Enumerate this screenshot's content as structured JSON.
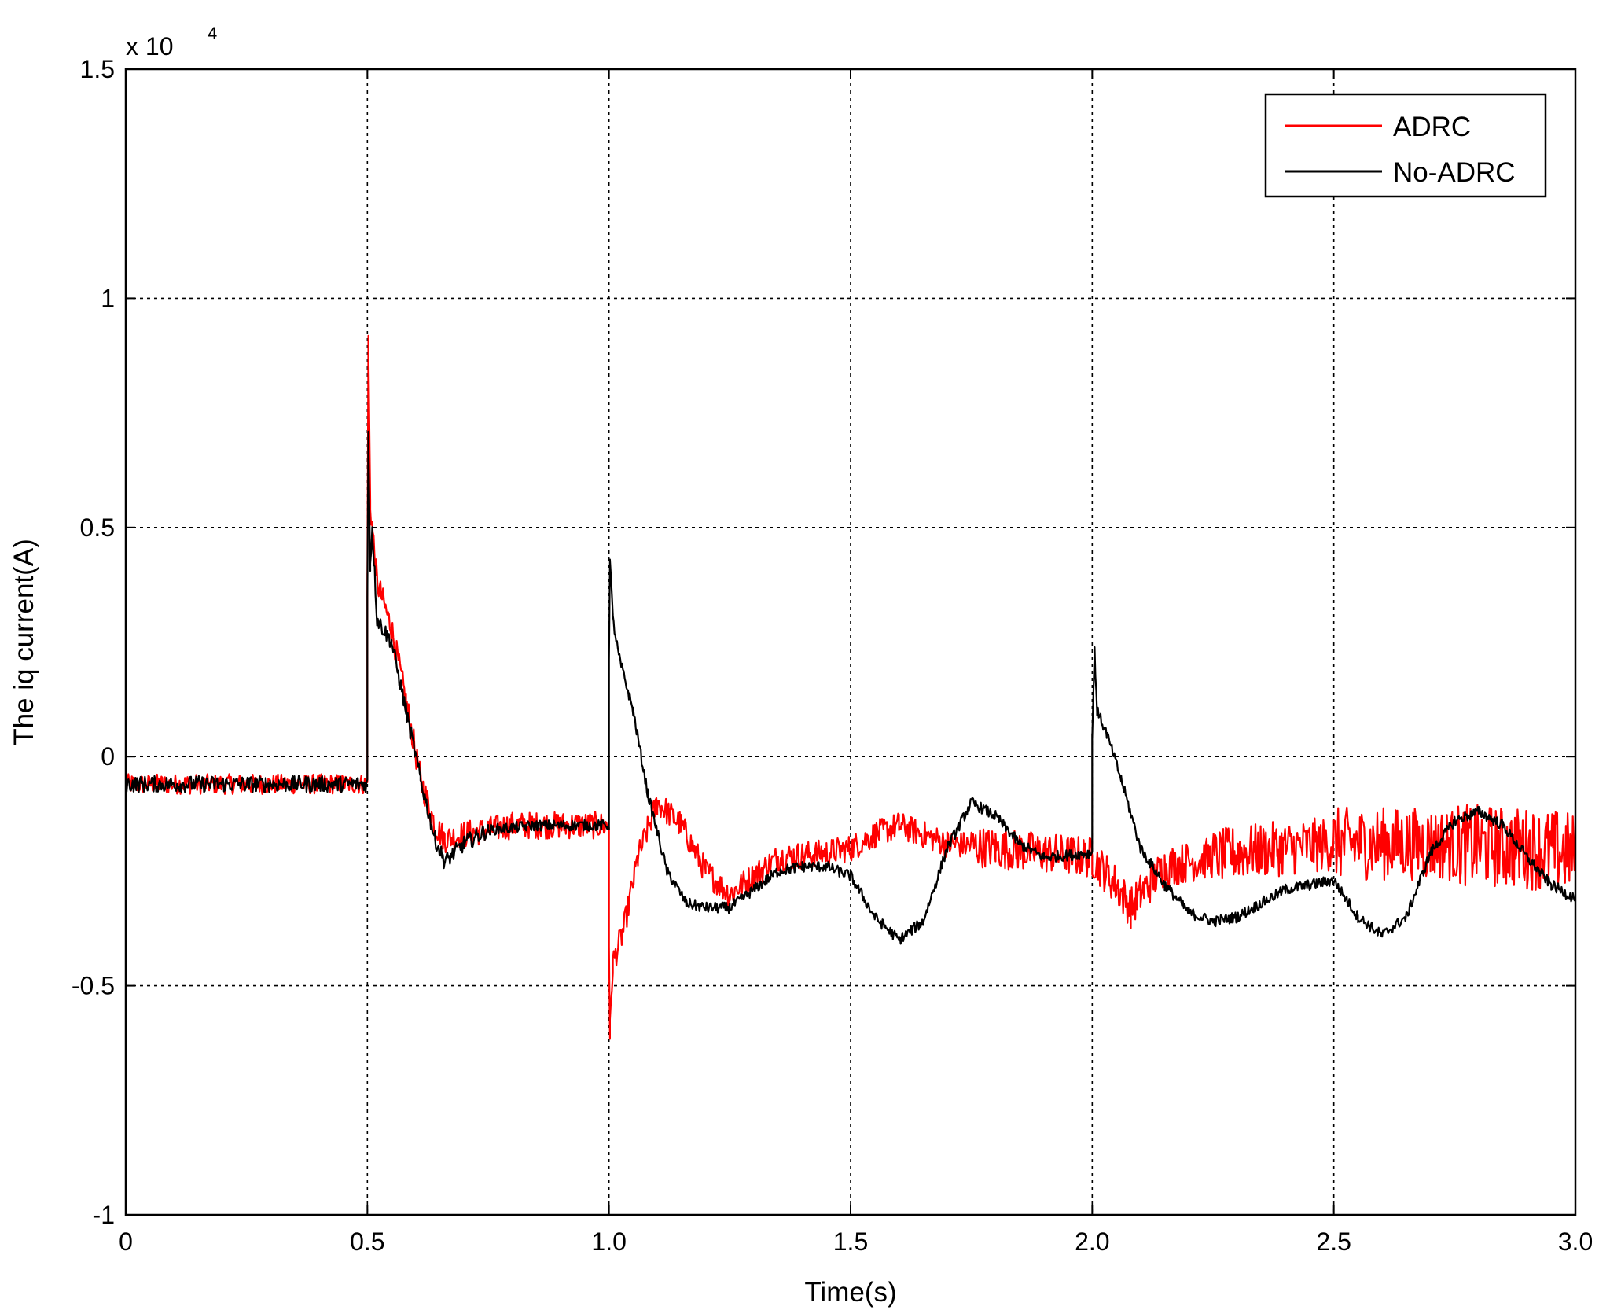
{
  "chart_data": {
    "type": "line",
    "xlabel": "Time(s)",
    "ylabel": "The iq current(A)",
    "y_multiplier": {
      "base": "x 10",
      "exponent": "4"
    },
    "xlim": [
      0,
      3
    ],
    "ylim": [
      -1,
      1.5
    ],
    "x_ticks": [
      "0",
      "0.5",
      "1.0",
      "1.5",
      "2.0",
      "2.5",
      "3.0"
    ],
    "y_ticks": [
      "-1",
      "-0.5",
      "0",
      "0.5",
      "1",
      "1.5"
    ],
    "grid": true,
    "legend_position": "top-right",
    "series": [
      {
        "name": "ADRC",
        "color": "#ff0000",
        "noise": [
          0.022,
          0.022,
          0.03,
          0.03,
          0.03,
          0.03,
          0.03,
          0.045,
          0.045,
          0.06,
          0.08,
          0.09
        ],
        "points": [
          [
            0,
            -0.06
          ],
          [
            0.5,
            -0.06
          ],
          [
            0.5,
            0.4
          ],
          [
            0.502,
            0.9
          ],
          [
            0.506,
            0.55
          ],
          [
            0.52,
            0.38
          ],
          [
            0.55,
            0.28
          ],
          [
            0.58,
            0.12
          ],
          [
            0.61,
            -0.05
          ],
          [
            0.64,
            -0.15
          ],
          [
            0.66,
            -0.18
          ],
          [
            0.7,
            -0.17
          ],
          [
            0.75,
            -0.16
          ],
          [
            0.8,
            -0.15
          ],
          [
            0.9,
            -0.15
          ],
          [
            1.0,
            -0.15
          ],
          [
            1.0,
            -0.4
          ],
          [
            1.002,
            -0.6
          ],
          [
            1.008,
            -0.45
          ],
          [
            1.03,
            -0.38
          ],
          [
            1.06,
            -0.22
          ],
          [
            1.1,
            -0.1
          ],
          [
            1.15,
            -0.15
          ],
          [
            1.2,
            -0.25
          ],
          [
            1.25,
            -0.3
          ],
          [
            1.3,
            -0.26
          ],
          [
            1.35,
            -0.22
          ],
          [
            1.45,
            -0.21
          ],
          [
            1.5,
            -0.2
          ],
          [
            1.55,
            -0.17
          ],
          [
            1.6,
            -0.15
          ],
          [
            1.7,
            -0.19
          ],
          [
            1.8,
            -0.2
          ],
          [
            1.9,
            -0.21
          ],
          [
            2.0,
            -0.22
          ],
          [
            2.05,
            -0.28
          ],
          [
            2.08,
            -0.33
          ],
          [
            2.1,
            -0.3
          ],
          [
            2.15,
            -0.24
          ],
          [
            2.3,
            -0.21
          ],
          [
            2.5,
            -0.19
          ],
          [
            2.7,
            -0.19
          ],
          [
            2.9,
            -0.2
          ],
          [
            3.0,
            -0.21
          ]
        ]
      },
      {
        "name": "No-ADRC",
        "color": "#000000",
        "noise": [
          0.018,
          0.018,
          0.018,
          0.012,
          0.012,
          0.012,
          0.012,
          0.012,
          0.012,
          0.012,
          0.012,
          0.012
        ],
        "points": [
          [
            0,
            -0.06
          ],
          [
            0.5,
            -0.06
          ],
          [
            0.5,
            0.35
          ],
          [
            0.502,
            0.7
          ],
          [
            0.506,
            0.42
          ],
          [
            0.51,
            0.5
          ],
          [
            0.52,
            0.3
          ],
          [
            0.55,
            0.25
          ],
          [
            0.58,
            0.1
          ],
          [
            0.61,
            -0.05
          ],
          [
            0.64,
            -0.18
          ],
          [
            0.66,
            -0.23
          ],
          [
            0.7,
            -0.19
          ],
          [
            0.75,
            -0.16
          ],
          [
            0.85,
            -0.15
          ],
          [
            1.0,
            -0.15
          ],
          [
            1.0,
            0.2
          ],
          [
            1.002,
            0.44
          ],
          [
            1.008,
            0.3
          ],
          [
            1.02,
            0.22
          ],
          [
            1.05,
            0.1
          ],
          [
            1.08,
            -0.08
          ],
          [
            1.12,
            -0.25
          ],
          [
            1.16,
            -0.32
          ],
          [
            1.2,
            -0.33
          ],
          [
            1.25,
            -0.33
          ],
          [
            1.3,
            -0.29
          ],
          [
            1.35,
            -0.25
          ],
          [
            1.4,
            -0.24
          ],
          [
            1.45,
            -0.24
          ],
          [
            1.5,
            -0.26
          ],
          [
            1.55,
            -0.35
          ],
          [
            1.6,
            -0.4
          ],
          [
            1.65,
            -0.36
          ],
          [
            1.7,
            -0.2
          ],
          [
            1.75,
            -0.1
          ],
          [
            1.8,
            -0.13
          ],
          [
            1.85,
            -0.19
          ],
          [
            1.9,
            -0.22
          ],
          [
            2.0,
            -0.21
          ],
          [
            2.0,
            0.05
          ],
          [
            2.005,
            0.23
          ],
          [
            2.01,
            0.1
          ],
          [
            2.03,
            0.05
          ],
          [
            2.06,
            -0.05
          ],
          [
            2.1,
            -0.2
          ],
          [
            2.15,
            -0.28
          ],
          [
            2.2,
            -0.34
          ],
          [
            2.25,
            -0.36
          ],
          [
            2.3,
            -0.35
          ],
          [
            2.4,
            -0.29
          ],
          [
            2.5,
            -0.27
          ],
          [
            2.55,
            -0.35
          ],
          [
            2.6,
            -0.39
          ],
          [
            2.65,
            -0.35
          ],
          [
            2.7,
            -0.21
          ],
          [
            2.75,
            -0.14
          ],
          [
            2.8,
            -0.12
          ],
          [
            2.85,
            -0.15
          ],
          [
            2.9,
            -0.22
          ],
          [
            2.95,
            -0.28
          ],
          [
            3.0,
            -0.31
          ]
        ]
      }
    ]
  }
}
